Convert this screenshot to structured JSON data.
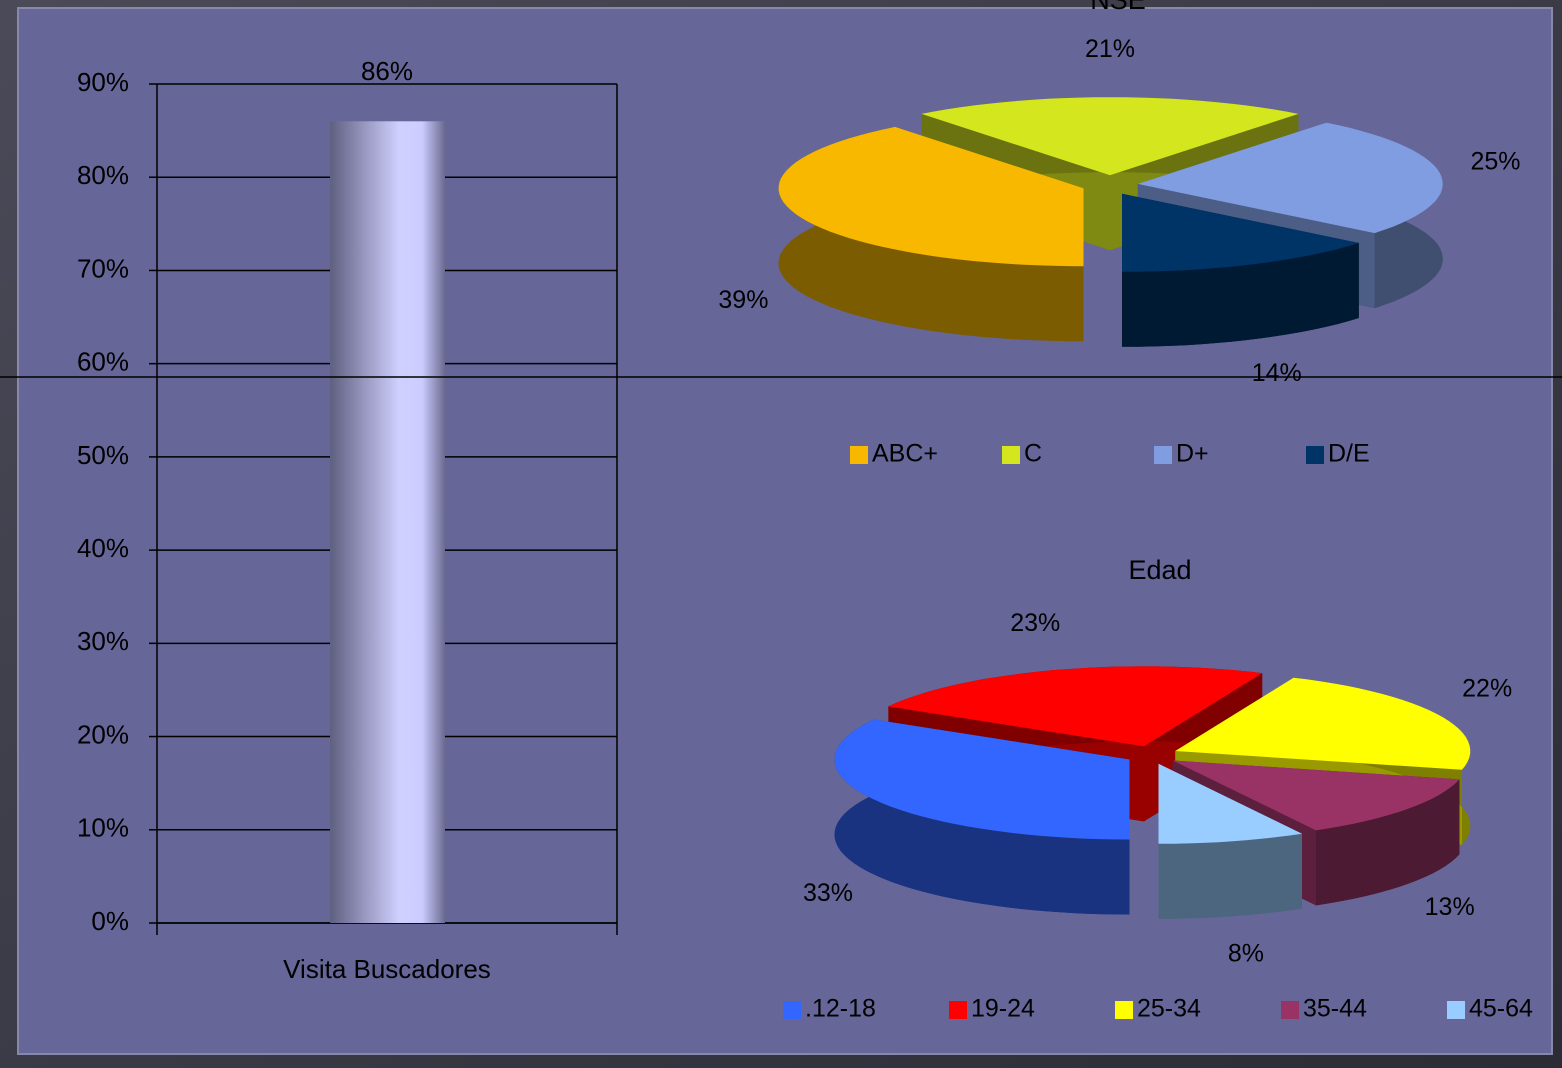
{
  "chart_data": [
    {
      "type": "bar",
      "categories": [
        "Visita Buscadores"
      ],
      "values": [
        86
      ],
      "value_labels": [
        "86%"
      ],
      "ylim": [
        0,
        90
      ],
      "yticks": [
        {
          "value": 0,
          "label": "0%"
        },
        {
          "value": 10,
          "label": "10%"
        },
        {
          "value": 20,
          "label": "20%"
        },
        {
          "value": 30,
          "label": "30%"
        },
        {
          "value": 40,
          "label": "40%"
        },
        {
          "value": 50,
          "label": "50%"
        },
        {
          "value": 60,
          "label": "60%"
        },
        {
          "value": 70,
          "label": "70%"
        },
        {
          "value": 80,
          "label": "80%"
        },
        {
          "value": 90,
          "label": "90%"
        }
      ],
      "grid": true
    },
    {
      "type": "pie",
      "title": "NSE",
      "categories": [
        "ABC+",
        "C",
        "D+",
        "D/E"
      ],
      "values": [
        39,
        21,
        25,
        14
      ],
      "value_labels": [
        "39%",
        "21%",
        "25%",
        "14%"
      ],
      "colors": [
        "#f8b800",
        "#d4e61e",
        "#7f9de0",
        "#003366"
      ],
      "legend": "bottom"
    },
    {
      "type": "pie",
      "title": "Edad",
      "categories": [
        ".12-18",
        "19-24",
        "25-34",
        "35-44",
        "45-64"
      ],
      "values": [
        33,
        23,
        22,
        13,
        8
      ],
      "value_labels": [
        "33%",
        "23%",
        "22%",
        "13%",
        "8%"
      ],
      "colors": [
        "#3366ff",
        "#ff0000",
        "#ffff00",
        "#993366",
        "#99ccff"
      ],
      "legend": "bottom"
    }
  ]
}
